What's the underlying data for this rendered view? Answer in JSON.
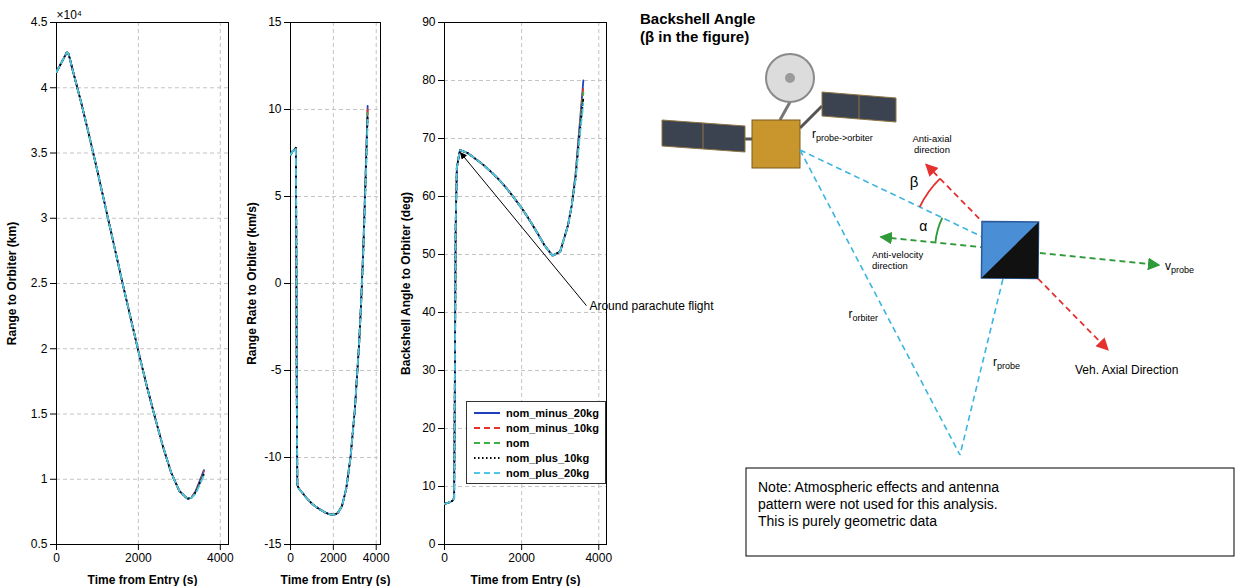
{
  "chart_data": [
    {
      "type": "line",
      "xlabel": "Time from Entry (s)",
      "ylabel": "Range to Orbiter (km)",
      "annotations": [
        {
          "text": "×10⁴"
        }
      ],
      "x": [
        0,
        100,
        200,
        250,
        270,
        290,
        320,
        400,
        600,
        800,
        1000,
        1200,
        1400,
        1600,
        1800,
        2000,
        2200,
        2400,
        2600,
        2800,
        3000,
        3200,
        3300,
        3400,
        3500,
        3600
      ],
      "xlim": [
        0,
        4200
      ],
      "xticks": [
        0,
        2000,
        4000
      ],
      "ylim": [
        0.5,
        4.5
      ],
      "yticks": [
        0.5,
        1,
        1.5,
        2,
        2.5,
        3,
        3.5,
        4,
        4.5
      ],
      "grid": true,
      "series": [
        {
          "name": "nom_minus_20kg",
          "color": "#1f3fbf",
          "line_style": "solid",
          "values": [
            4.12,
            4.18,
            4.24,
            4.27,
            4.27,
            4.26,
            4.23,
            4.13,
            3.89,
            3.63,
            3.36,
            3.08,
            2.8,
            2.52,
            2.25,
            1.98,
            1.72,
            1.48,
            1.25,
            1.05,
            0.91,
            0.85,
            0.86,
            0.91,
            0.99,
            1.07
          ]
        },
        {
          "name": "nom_minus_10kg",
          "color": "#e8302a",
          "line_style": "dashed",
          "values": [
            4.12,
            4.18,
            4.24,
            4.27,
            4.27,
            4.26,
            4.23,
            4.13,
            3.89,
            3.63,
            3.36,
            3.08,
            2.8,
            2.52,
            2.25,
            1.98,
            1.72,
            1.48,
            1.25,
            1.05,
            0.91,
            0.85,
            0.86,
            0.91,
            0.98,
            1.06
          ]
        },
        {
          "name": "nom",
          "color": "#3cb043",
          "line_style": "dashed",
          "values": [
            4.12,
            4.18,
            4.24,
            4.27,
            4.27,
            4.26,
            4.23,
            4.13,
            3.89,
            3.63,
            3.36,
            3.08,
            2.8,
            2.52,
            2.25,
            1.98,
            1.72,
            1.48,
            1.25,
            1.05,
            0.91,
            0.85,
            0.86,
            0.9,
            0.97,
            1.05
          ]
        },
        {
          "name": "nom_plus_10kg",
          "color": "#000000",
          "line_style": "dotted",
          "values": [
            4.12,
            4.18,
            4.24,
            4.27,
            4.27,
            4.26,
            4.23,
            4.13,
            3.89,
            3.63,
            3.36,
            3.08,
            2.8,
            2.52,
            2.25,
            1.98,
            1.72,
            1.48,
            1.25,
            1.05,
            0.91,
            0.85,
            0.86,
            0.9,
            0.97,
            1.04
          ]
        },
        {
          "name": "nom_plus_20kg",
          "color": "#4fc8e8",
          "line_style": "dashed",
          "values": [
            4.12,
            4.18,
            4.24,
            4.27,
            4.27,
            4.26,
            4.23,
            4.13,
            3.89,
            3.63,
            3.36,
            3.08,
            2.8,
            2.52,
            2.25,
            1.98,
            1.72,
            1.48,
            1.25,
            1.05,
            0.91,
            0.85,
            0.86,
            0.89,
            0.96,
            1.03
          ]
        }
      ]
    },
    {
      "type": "line",
      "xlabel": "Time from Entry (s)",
      "ylabel": "Range Rate to Orbiter (km/s)",
      "x": [
        0,
        100,
        200,
        250,
        270,
        290,
        320,
        400,
        600,
        800,
        1000,
        1200,
        1400,
        1600,
        1800,
        2000,
        2200,
        2400,
        2600,
        2800,
        3000,
        3200,
        3300,
        3400,
        3500,
        3600
      ],
      "xlim": [
        0,
        4200
      ],
      "xticks": [
        0,
        2000,
        4000
      ],
      "ylim": [
        -15,
        15
      ],
      "yticks": [
        -15,
        -10,
        -5,
        0,
        5,
        10,
        15
      ],
      "grid": true,
      "series": [
        {
          "name": "nom_minus_20kg",
          "color": "#1f3fbf",
          "line_style": "solid",
          "values": [
            7.4,
            7.6,
            7.7,
            7.8,
            3,
            -6,
            -11.6,
            -11.8,
            -12.1,
            -12.4,
            -12.65,
            -12.85,
            -13,
            -13.15,
            -13.25,
            -13.3,
            -13.2,
            -12.8,
            -11.8,
            -10,
            -7.3,
            -3.5,
            -1,
            2.2,
            6.1,
            10.2
          ]
        },
        {
          "name": "nom_minus_10kg",
          "color": "#e8302a",
          "line_style": "dashed",
          "values": [
            7.4,
            7.6,
            7.7,
            7.8,
            3,
            -6,
            -11.6,
            -11.8,
            -12.1,
            -12.4,
            -12.65,
            -12.85,
            -13,
            -13.15,
            -13.25,
            -13.3,
            -13.2,
            -12.8,
            -11.8,
            -10,
            -7.3,
            -3.5,
            -1,
            2.1,
            5.9,
            10
          ]
        },
        {
          "name": "nom",
          "color": "#3cb043",
          "line_style": "dashed",
          "values": [
            7.4,
            7.6,
            7.7,
            7.8,
            3,
            -6,
            -11.6,
            -11.8,
            -12.1,
            -12.4,
            -12.65,
            -12.85,
            -13,
            -13.15,
            -13.25,
            -13.3,
            -13.2,
            -12.8,
            -11.8,
            -10,
            -7.3,
            -3.5,
            -1,
            2,
            5.8,
            9.8
          ]
        },
        {
          "name": "nom_plus_10kg",
          "color": "#000000",
          "line_style": "dotted",
          "values": [
            7.4,
            7.6,
            7.7,
            7.8,
            3,
            -6,
            -11.6,
            -11.8,
            -12.1,
            -12.4,
            -12.65,
            -12.85,
            -13,
            -13.15,
            -13.25,
            -13.3,
            -13.2,
            -12.8,
            -11.8,
            -10,
            -7.3,
            -3.5,
            -1,
            1.9,
            5.6,
            9.6
          ]
        },
        {
          "name": "nom_plus_20kg",
          "color": "#4fc8e8",
          "line_style": "dashed",
          "values": [
            7.4,
            7.6,
            7.7,
            7.8,
            3,
            -6,
            -11.6,
            -11.8,
            -12.1,
            -12.4,
            -12.65,
            -12.85,
            -13,
            -13.15,
            -13.25,
            -13.3,
            -13.2,
            -12.8,
            -11.8,
            -10,
            -7.3,
            -3.5,
            -1,
            1.8,
            5.4,
            9.4
          ]
        }
      ]
    },
    {
      "type": "line",
      "xlabel": "Time from Entry (s)",
      "ylabel": "Backshell Angle to Orbiter (deg)",
      "annotations": [
        {
          "text": "Around parachute flight",
          "x": 400,
          "y": 68
        }
      ],
      "x": [
        0,
        100,
        200,
        250,
        270,
        290,
        320,
        400,
        600,
        800,
        1000,
        1200,
        1400,
        1600,
        1800,
        2000,
        2200,
        2400,
        2600,
        2800,
        3000,
        3200,
        3300,
        3400,
        3500,
        3600
      ],
      "xlim": [
        0,
        4200
      ],
      "xticks": [
        0,
        2000,
        4000
      ],
      "ylim": [
        0,
        90
      ],
      "yticks": [
        0,
        10,
        20,
        30,
        40,
        50,
        60,
        70,
        80,
        90
      ],
      "grid": true,
      "legend": "lower left",
      "series": [
        {
          "name": "nom_minus_20kg",
          "color": "#1f3fbf",
          "line_style": "solid",
          "values": [
            7,
            7.2,
            7.5,
            8,
            30,
            55,
            65,
            68,
            67.5,
            66.5,
            65.5,
            64.3,
            63,
            61.5,
            59.8,
            58,
            56,
            53.8,
            51.5,
            49.8,
            50.5,
            55,
            58.5,
            64,
            72,
            80
          ]
        },
        {
          "name": "nom_minus_10kg",
          "color": "#e8302a",
          "line_style": "dashed",
          "values": [
            7,
            7.2,
            7.5,
            8,
            30,
            55,
            65,
            68,
            67.5,
            66.5,
            65.5,
            64.3,
            63,
            61.5,
            59.8,
            58,
            56,
            53.8,
            51.5,
            49.8,
            50.5,
            55,
            58.5,
            63.8,
            71.5,
            79
          ]
        },
        {
          "name": "nom",
          "color": "#3cb043",
          "line_style": "dashed",
          "values": [
            7,
            7.2,
            7.5,
            8,
            30,
            55,
            65,
            68,
            67.5,
            66.5,
            65.5,
            64.3,
            63,
            61.5,
            59.8,
            58,
            56,
            53.8,
            51.5,
            49.8,
            50.5,
            55,
            58.5,
            63.5,
            71,
            78
          ]
        },
        {
          "name": "nom_plus_10kg",
          "color": "#000000",
          "line_style": "dotted",
          "values": [
            7,
            7.2,
            7.5,
            8,
            30,
            55,
            65,
            68,
            67.5,
            66.5,
            65.5,
            64.3,
            63,
            61.5,
            59.8,
            58,
            56,
            53.8,
            51.5,
            49.8,
            50.5,
            55,
            58.5,
            63.2,
            70.5,
            77
          ]
        },
        {
          "name": "nom_plus_20kg",
          "color": "#4fc8e8",
          "line_style": "dashed",
          "values": [
            7,
            7.2,
            7.5,
            8,
            30,
            55,
            65,
            68,
            67.5,
            66.5,
            65.5,
            64.3,
            63,
            61.5,
            59.8,
            58,
            56,
            53.8,
            51.5,
            49.8,
            50.5,
            55,
            58.5,
            63,
            70,
            76
          ]
        }
      ]
    }
  ],
  "diagram": {
    "title": [
      "Backshell Angle",
      "(β in the figure)"
    ],
    "beta": "β",
    "alpha": "α",
    "anti_axial": [
      "Anti-axial",
      "direction"
    ],
    "anti_velocity": [
      "Anti-velocity",
      "direction"
    ],
    "vehicle_axial": "Veh. Axial Direction",
    "velocity": {
      "text": "v",
      "subscript": "probe"
    },
    "probe_to_orbiter": {
      "text": "r",
      "subscript": "probe->orbiter"
    },
    "orbiter": {
      "text": "r",
      "subscript": "orbiter"
    },
    "probe": {
      "text": "r",
      "subscript": "probe"
    },
    "note": [
      "Note: Atmospheric effects and antenna",
      "pattern were not used for this analysis.",
      "This is purely geometric data"
    ]
  }
}
